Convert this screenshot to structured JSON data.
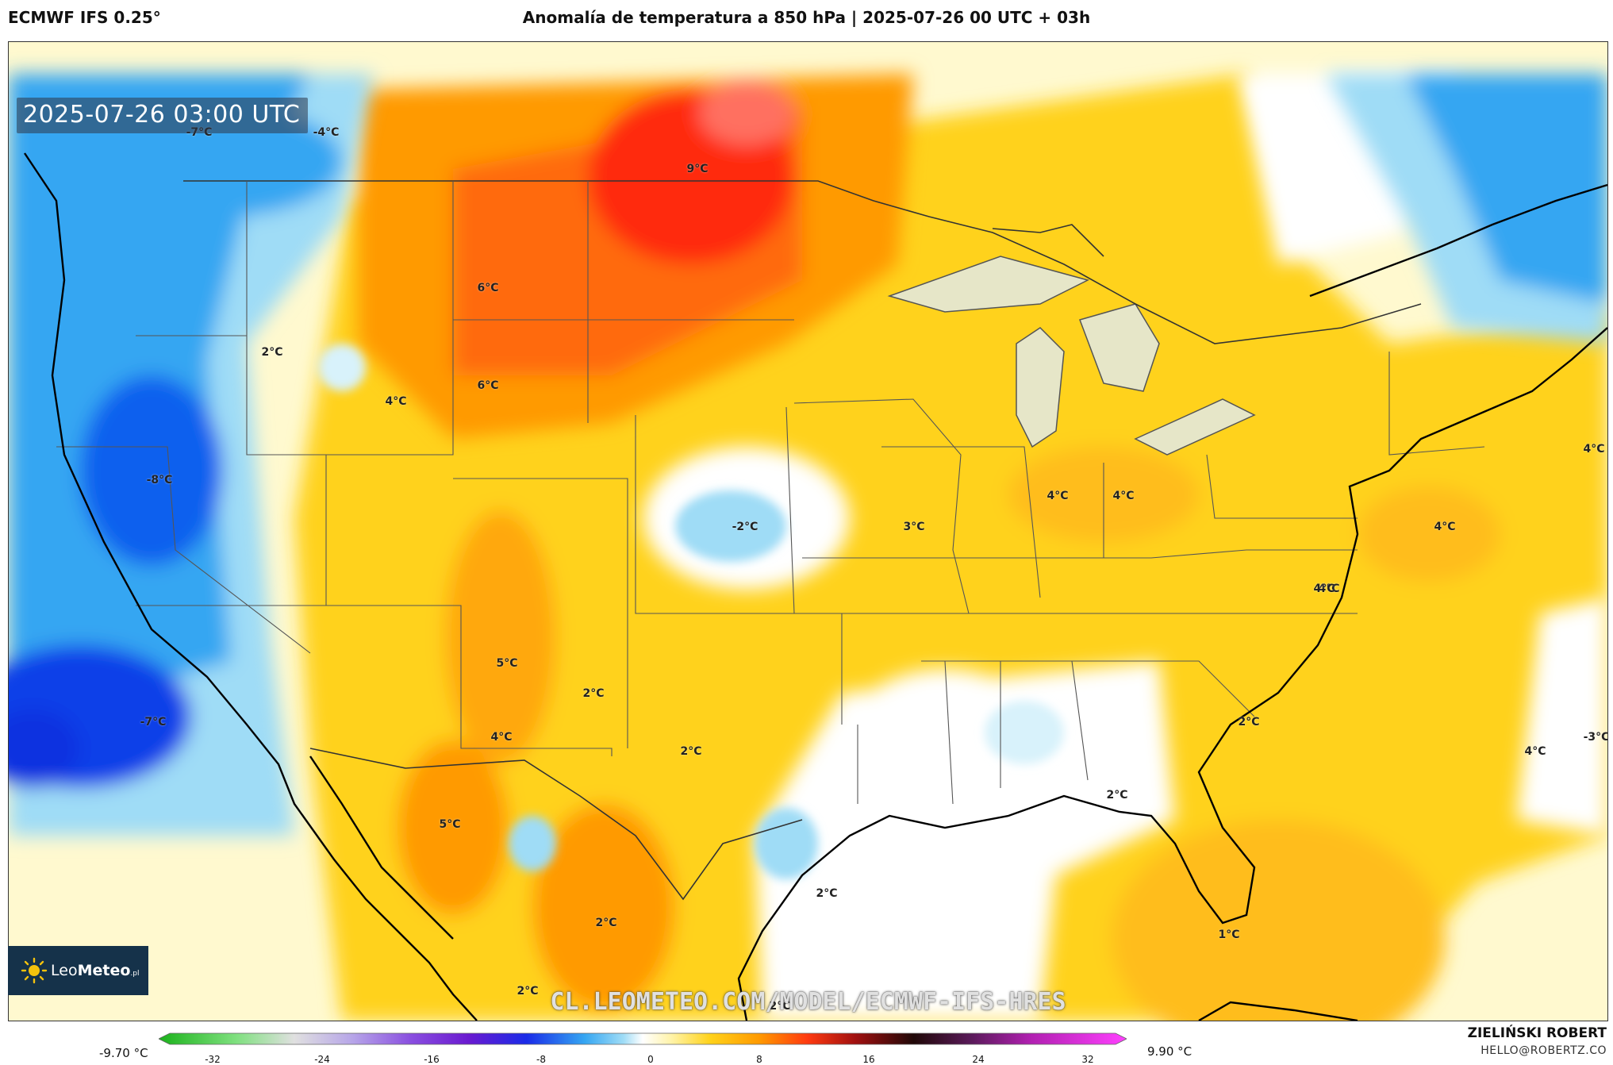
{
  "header": {
    "model": "ECMWF IFS 0.25°",
    "title": "Anomalía de temperatura a 850 hPa | 2025-07-26 00 UTC + 03h"
  },
  "map": {
    "timestamp": "2025-07-26 03:00 UTC",
    "watermark": "CL.LEOMETEO.COM/MODEL/ECMWF-IFS-HRES",
    "labels": [
      "-7°C",
      "-4°C",
      "9°C",
      "6°C",
      "2°C",
      "6°C",
      "4°C",
      "-8°C",
      "-2°C",
      "3°C",
      "4°C",
      "4°C",
      "4°C",
      "4°C",
      "4°C",
      "5°C",
      "2°C",
      "4°C",
      "2°C",
      "-7°C",
      "5°C",
      "2°C",
      "4°C",
      "2°C",
      "2°C",
      "2°C",
      "2°C",
      "1°C",
      "-3°C",
      "2°C",
      "4°C"
    ]
  },
  "logo": {
    "brand_bold": "Leo",
    "brand_rest": "Meteo",
    "suffix": ".pl"
  },
  "scale": {
    "min_label": "-9.70 °C",
    "max_label": "9.90 °C",
    "ticks": [
      "-32",
      "-24",
      "-16",
      "-8",
      "0",
      "8",
      "16",
      "24",
      "32"
    ]
  },
  "credit": {
    "name": "ZIELIŃSKI ROBERT",
    "email": "HELLO@ROBERTZ.CO"
  },
  "colors": {
    "cold_strong": "#1030e0",
    "cold": "#35a6f2",
    "cool": "#9fdcf6",
    "neutral": "#ffffff",
    "warm_light": "#fff3a8",
    "warm": "#ffd21a",
    "hot": "#ff9a00",
    "very_hot": "#ff5a10",
    "extreme": "#ff2a10"
  }
}
